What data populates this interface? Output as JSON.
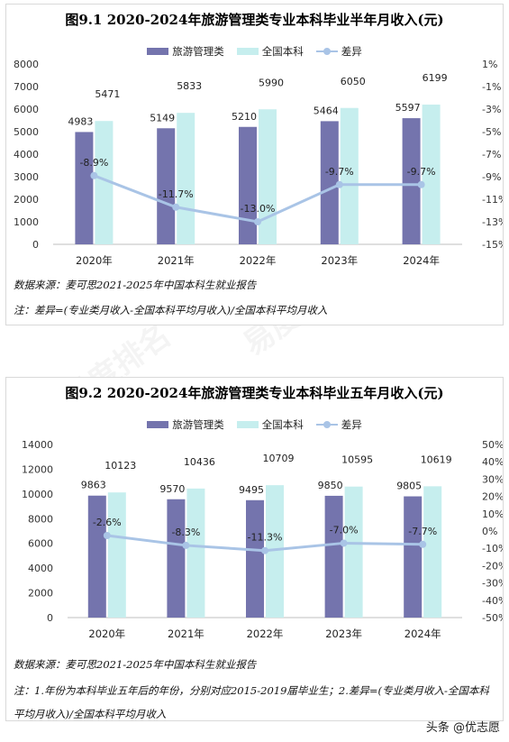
{
  "colors": {
    "major": "#7474ad",
    "national": "#c6eeee",
    "diff": "#a9c4e6"
  },
  "chart_data": [
    {
      "type": "bar",
      "title": "图9.1  2020-2024年旅游管理类专业本科毕业半年月收入(元)",
      "categories": [
        "2020年",
        "2021年",
        "2022年",
        "2023年",
        "2024年"
      ],
      "series": [
        {
          "name": "旅游管理类",
          "type": "bar",
          "values": [
            4983,
            5149,
            5210,
            5464,
            5597
          ]
        },
        {
          "name": "全国本科",
          "type": "bar",
          "values": [
            5471,
            5833,
            5990,
            6050,
            6199
          ]
        },
        {
          "name": "差异",
          "type": "line",
          "axis": "right",
          "values": [
            -8.9,
            -11.7,
            -13.0,
            -9.7,
            -9.7
          ],
          "labels": [
            "-8.9%",
            "-11.7%",
            "-13.0%",
            "-9.7%",
            "-9.7%"
          ]
        }
      ],
      "ylim": [
        0,
        8000
      ],
      "yticks": [
        "0",
        "1000",
        "2000",
        "3000",
        "4000",
        "5000",
        "6000",
        "7000",
        "8000"
      ],
      "y2lim": [
        -15,
        1
      ],
      "y2ticks": [
        "-15%",
        "-13%",
        "-11%",
        "-9%",
        "-7%",
        "-5%",
        "-3%",
        "-1%",
        "1%"
      ],
      "source": "数据来源：麦可思2021-2025年中国本科生就业报告",
      "note": "注：差异=(专业类月收入-全国本科平均月收入)/全国本科平均月收入"
    },
    {
      "type": "bar",
      "title": "图9.2  2020-2024年旅游管理类专业本科毕业五年月收入(元)",
      "categories": [
        "2020年",
        "2021年",
        "2022年",
        "2023年",
        "2024年"
      ],
      "series": [
        {
          "name": "旅游管理类",
          "type": "bar",
          "values": [
            9863,
            9570,
            9495,
            9850,
            9805
          ]
        },
        {
          "name": "全国本科",
          "type": "bar",
          "values": [
            10123,
            10436,
            10709,
            10595,
            10619
          ]
        },
        {
          "name": "差异",
          "type": "line",
          "axis": "right",
          "values": [
            -2.6,
            -8.3,
            -11.3,
            -7.0,
            -7.7
          ],
          "labels": [
            "-2.6%",
            "-8.3%",
            "-11.3%",
            "-7.0%",
            "-7.7%"
          ]
        }
      ],
      "ylim": [
        0,
        14000
      ],
      "yticks": [
        "0",
        "2000",
        "4000",
        "6000",
        "8000",
        "10000",
        "12000",
        "14000"
      ],
      "y2lim": [
        -50,
        50
      ],
      "y2ticks": [
        "-50%",
        "-40%",
        "-30%",
        "-20%",
        "-10%",
        "0%",
        "10%",
        "20%",
        "30%",
        "40%",
        "50%"
      ],
      "source": "数据来源：麦可思2021-2025年中国本科生就业报告",
      "note": "注：1.年份为本科毕业五年后的年份，分别对应2015-2019届毕业生；2.差异=(专业类月收入-全国本科平均月收入)/全国本科平均月收入"
    }
  ],
  "watermark_text": "易度排名",
  "footer": "头条 @优志愿"
}
